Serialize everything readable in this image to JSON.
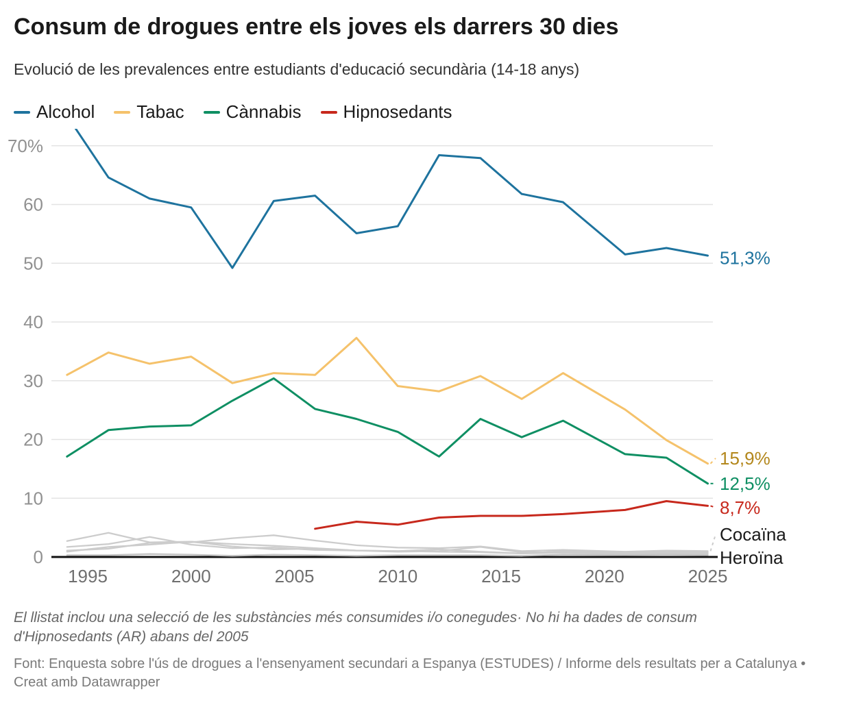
{
  "header": {
    "title": "Consum de drogues entre els joves els darrers 30 dies",
    "subtitle": "Evolució de les prevalences entre estudiants d'educació secundària (14-18 anys)"
  },
  "legend": {
    "items": [
      {
        "label": "Alcohol",
        "color": "#1e739e"
      },
      {
        "label": "Tabac",
        "color": "#f5c26b"
      },
      {
        "label": "Cànnabis",
        "color": "#0f8f63"
      },
      {
        "label": "Hipnosedants",
        "color": "#c7281c"
      }
    ]
  },
  "chart_data": {
    "type": "line",
    "x": [
      1994,
      1996,
      1998,
      2000,
      2002,
      2004,
      2006,
      2008,
      2010,
      2012,
      2014,
      2016,
      2018,
      2021,
      2023,
      2025
    ],
    "x_axis": {
      "ticks": [
        1995,
        2000,
        2005,
        2010,
        2015,
        2020,
        2025
      ]
    },
    "y_axis": {
      "ticks": [
        0,
        10,
        20,
        30,
        40,
        50,
        60,
        70
      ],
      "top_tick_label": "70%",
      "unit": "%",
      "range": [
        0,
        73
      ]
    },
    "grid": true,
    "legend_position": "top",
    "series": [
      {
        "id": "alcohol",
        "name": "Alcohol",
        "color": "#1e739e",
        "width": 3,
        "end_label": "51,3%",
        "label_at": 50.9,
        "leader": "none",
        "values": [
          75.1,
          64.6,
          61.0,
          59.5,
          49.2,
          60.6,
          61.5,
          55.1,
          56.3,
          68.4,
          67.9,
          61.8,
          60.4,
          51.5,
          52.6,
          51.3
        ]
      },
      {
        "id": "tabac",
        "name": "Tabac",
        "color": "#f5c26b",
        "label_color": "#b3871c",
        "width": 3,
        "end_label": "15,9%",
        "label_at": 16.8,
        "leader": "dashed",
        "values": [
          31.0,
          34.8,
          32.9,
          34.1,
          29.6,
          31.3,
          31.0,
          37.3,
          29.1,
          28.2,
          30.8,
          26.9,
          31.3,
          25.1,
          19.9,
          15.9
        ]
      },
      {
        "id": "cannabis",
        "name": "Cànnabis",
        "color": "#0f8f63",
        "width": 3,
        "end_label": "12,5%",
        "label_at": 12.5,
        "leader": "dashed",
        "values": [
          17.1,
          21.6,
          22.2,
          22.4,
          26.6,
          30.4,
          25.2,
          23.5,
          21.3,
          17.1,
          23.5,
          20.4,
          23.2,
          17.5,
          16.9,
          12.5
        ]
      },
      {
        "id": "hipnosedants",
        "name": "Hipnosedants",
        "color": "#c7281c",
        "width": 3,
        "end_label": "8,7%",
        "label_at": 8.4,
        "leader": "dashed",
        "values": [
          null,
          null,
          null,
          null,
          null,
          null,
          4.8,
          6.0,
          5.5,
          6.7,
          7.0,
          7.0,
          7.3,
          8.0,
          9.5,
          8.7
        ]
      },
      {
        "id": "cocaina",
        "name": "Cocaïna",
        "color": "#cccccc",
        "label_color": "#1a1a1a",
        "width": 2.3,
        "end_label": "Cocaïna",
        "label_at": 3.85,
        "leader": "dashed",
        "values": [
          1.1,
          1.4,
          2.4,
          2.5,
          3.2,
          3.7,
          2.8,
          2.0,
          1.6,
          1.5,
          1.8,
          1.0,
          1.2,
          0.9,
          1.1,
          1.0
        ]
      },
      {
        "id": "gray-2",
        "name": "",
        "color": "#cccccc",
        "width": 2.3,
        "values": [
          2.7,
          4.1,
          2.5,
          2.6,
          1.8,
          1.3,
          1.4,
          1.1,
          1.0,
          1.3,
          0.9,
          0.6,
          1.0,
          0.7,
          0.9,
          0.8
        ]
      },
      {
        "id": "gray-3",
        "name": "",
        "color": "#cccccc",
        "width": 2.3,
        "values": [
          1.7,
          2.2,
          3.4,
          2.1,
          1.5,
          1.6,
          1.2,
          1.1,
          0.9,
          1.0,
          1.7,
          0.8,
          0.8,
          0.5,
          0.7,
          0.6
        ]
      },
      {
        "id": "gray-4",
        "name": "",
        "color": "#cccccc",
        "width": 2.3,
        "values": [
          0.9,
          1.7,
          2.1,
          2.6,
          2.2,
          1.9,
          1.5,
          1.1,
          1.0,
          0.9,
          0.8,
          0.6,
          0.7,
          0.5,
          0.6,
          0.5
        ]
      },
      {
        "id": "heroina",
        "name": "Heroïna",
        "color": "#c2c2c2",
        "label_color": "#1a1a1a",
        "width": 2.3,
        "end_label": "Heroïna",
        "label_at": -0.1,
        "leader": "none",
        "values": [
          0.3,
          0.3,
          0.5,
          0.4,
          0.2,
          0.4,
          0.3,
          0.2,
          0.3,
          0.3,
          0.3,
          0.2,
          0.4,
          0.3,
          0.4,
          0.3
        ]
      }
    ]
  },
  "footer": {
    "note": "El llistat inclou una selecció de les substàncies més consumides i/o conegudes· No hi ha dades de consum d'Hipnosedants (AR) abans del 2005",
    "source": "Font: Enquesta sobre l'ús de drogues a l'ensenyament secundari a Espanya (ESTUDES) / Informe dels resultats per a Catalunya • Creat amb Datawrapper"
  }
}
